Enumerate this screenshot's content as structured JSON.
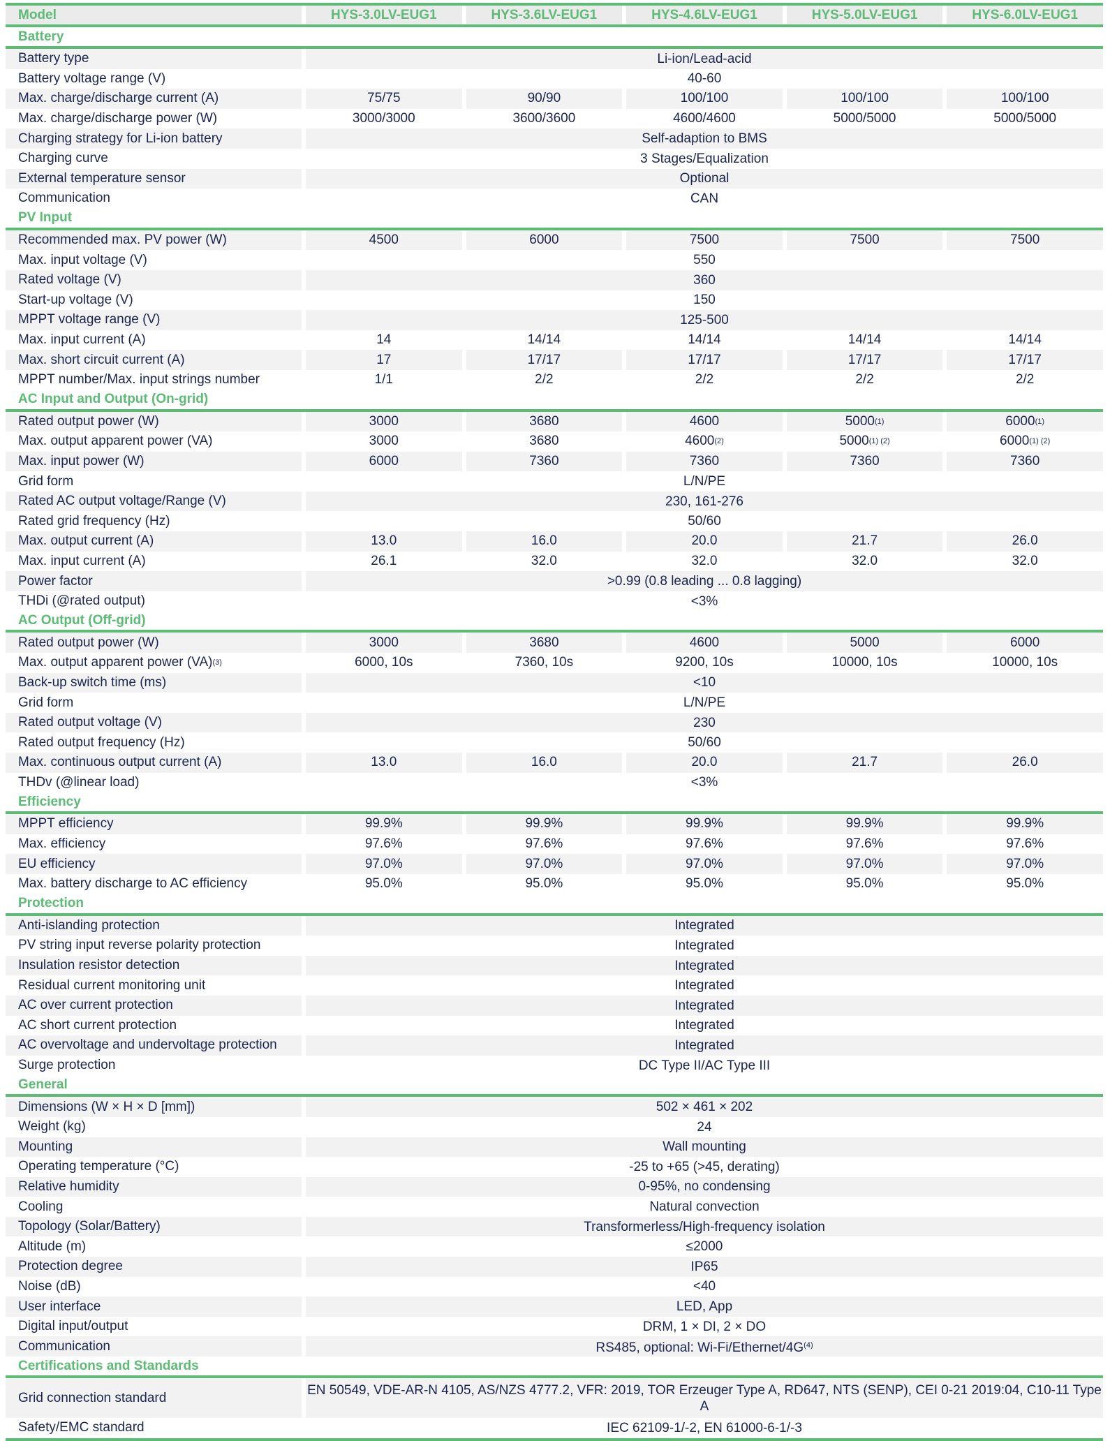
{
  "header": {
    "label": "Model",
    "models": [
      "HYS-3.0LV-EUG1",
      "HYS-3.6LV-EUG1",
      "HYS-4.6LV-EUG1",
      "HYS-5.0LV-EUG1",
      "HYS-6.0LV-EUG1"
    ]
  },
  "colors": {
    "accent": "#5cbb74",
    "text": "#1b2550",
    "stripe": "#f2f2f2"
  },
  "sections": [
    {
      "title": "Battery",
      "rows": [
        {
          "label": "Battery type",
          "all": "Li-ion/Lead-acid"
        },
        {
          "label": "Battery voltage range (V)",
          "all": "40-60"
        },
        {
          "label": "Max. charge/discharge current (A)",
          "values": [
            "75/75",
            "90/90",
            "100/100",
            "100/100",
            "100/100"
          ]
        },
        {
          "label": "Max. charge/discharge power (W)",
          "values": [
            "3000/3000",
            "3600/3600",
            "4600/4600",
            "5000/5000",
            "5000/5000"
          ]
        },
        {
          "label": "Charging strategy for Li-ion battery",
          "all": "Self-adaption to BMS"
        },
        {
          "label": "Charging curve",
          "all": "3 Stages/Equalization"
        },
        {
          "label": "External temperature sensor",
          "all": "Optional"
        },
        {
          "label": "Communication",
          "all": "CAN"
        }
      ]
    },
    {
      "title": "PV Input",
      "rows": [
        {
          "label": "Recommended max. PV power (W)",
          "values": [
            "4500",
            "6000",
            "7500",
            "7500",
            "7500"
          ]
        },
        {
          "label": "Max. input voltage (V)",
          "all": "550"
        },
        {
          "label": "Rated voltage (V)",
          "all": "360"
        },
        {
          "label": "Start-up voltage (V)",
          "all": "150"
        },
        {
          "label": "MPPT voltage range (V)",
          "all": "125-500"
        },
        {
          "label": "Max. input current (A)",
          "values": [
            "14",
            "14/14",
            "14/14",
            "14/14",
            "14/14"
          ]
        },
        {
          "label": "Max. short circuit current (A)",
          "values": [
            "17",
            "17/17",
            "17/17",
            "17/17",
            "17/17"
          ]
        },
        {
          "label": "MPPT number/Max. input strings number",
          "values": [
            "1/1",
            "2/2",
            "2/2",
            "2/2",
            "2/2"
          ]
        }
      ]
    },
    {
      "title": "AC Input and Output (On-grid)",
      "rows": [
        {
          "label": "Rated output power (W)",
          "values": [
            "3000",
            "3680",
            "4600",
            "5000",
            "6000"
          ],
          "sups": [
            "",
            "",
            "",
            "(1)",
            "(1)"
          ]
        },
        {
          "label": "Max. output apparent power (VA)",
          "values": [
            "3000",
            "3680",
            "4600",
            "5000",
            "6000"
          ],
          "sups": [
            "",
            "",
            "(2)",
            "(1) (2)",
            "(1) (2)"
          ]
        },
        {
          "label": "Max. input power (W)",
          "values": [
            "6000",
            "7360",
            "7360",
            "7360",
            "7360"
          ]
        },
        {
          "label": "Grid form",
          "all": "L/N/PE"
        },
        {
          "label": "Rated AC output voltage/Range (V)",
          "all": "230, 161-276"
        },
        {
          "label": "Rated grid frequency (Hz)",
          "all": "50/60"
        },
        {
          "label": "Max. output current (A)",
          "values": [
            "13.0",
            "16.0",
            "20.0",
            "21.7",
            "26.0"
          ]
        },
        {
          "label": "Max. input current (A)",
          "values": [
            "26.1",
            "32.0",
            "32.0",
            "32.0",
            "32.0"
          ]
        },
        {
          "label": "Power factor",
          "all": ">0.99 (0.8 leading ... 0.8 lagging)"
        },
        {
          "label": "THDi (@rated output)",
          "all": "<3%"
        }
      ]
    },
    {
      "title": "AC Output (Off-grid)",
      "rows": [
        {
          "label": "Rated output power (W)",
          "values": [
            "3000",
            "3680",
            "4600",
            "5000",
            "6000"
          ]
        },
        {
          "label": "Max. output apparent power (VA)",
          "label_sup": "(3)",
          "values": [
            "6000, 10s",
            "7360, 10s",
            "9200, 10s",
            "10000, 10s",
            "10000, 10s"
          ]
        },
        {
          "label": "Back-up switch time (ms)",
          "all": "<10"
        },
        {
          "label": "Grid form",
          "all": "L/N/PE"
        },
        {
          "label": "Rated output voltage (V)",
          "all": "230"
        },
        {
          "label": "Rated output frequency (Hz)",
          "all": "50/60"
        },
        {
          "label": "Max. continuous output current (A)",
          "values": [
            "13.0",
            "16.0",
            "20.0",
            "21.7",
            "26.0"
          ]
        },
        {
          "label": "THDv (@linear load)",
          "all": "<3%"
        }
      ]
    },
    {
      "title": "Efficiency",
      "rows": [
        {
          "label": "MPPT efficiency",
          "values": [
            "99.9%",
            "99.9%",
            "99.9%",
            "99.9%",
            "99.9%"
          ]
        },
        {
          "label": "Max. efficiency",
          "values": [
            "97.6%",
            "97.6%",
            "97.6%",
            "97.6%",
            "97.6%"
          ]
        },
        {
          "label": "EU efficiency",
          "values": [
            "97.0%",
            "97.0%",
            "97.0%",
            "97.0%",
            "97.0%"
          ]
        },
        {
          "label": "Max. battery discharge to AC efficiency",
          "values": [
            "95.0%",
            "95.0%",
            "95.0%",
            "95.0%",
            "95.0%"
          ]
        }
      ]
    },
    {
      "title": "Protection",
      "rows": [
        {
          "label": "Anti-islanding protection",
          "all": "Integrated"
        },
        {
          "label": "PV string input reverse polarity protection",
          "all": "Integrated"
        },
        {
          "label": "Insulation resistor detection",
          "all": "Integrated"
        },
        {
          "label": "Residual current monitoring unit",
          "all": "Integrated"
        },
        {
          "label": "AC over current protection",
          "all": "Integrated"
        },
        {
          "label": "AC short current protection",
          "all": "Integrated"
        },
        {
          "label": "AC overvoltage and undervoltage protection",
          "all": "Integrated"
        },
        {
          "label": "Surge protection",
          "all": "DC Type II/AC Type III"
        }
      ]
    },
    {
      "title": "General",
      "rows": [
        {
          "label": "Dimensions (W × H × D [mm])",
          "all": "502 × 461 × 202"
        },
        {
          "label": "Weight (kg)",
          "all": "24"
        },
        {
          "label": "Mounting",
          "all": "Wall mounting"
        },
        {
          "label": "Operating temperature (°C)",
          "all": "-25 to +65 (>45, derating)"
        },
        {
          "label": "Relative humidity",
          "all": "0-95%, no condensing"
        },
        {
          "label": "Cooling",
          "all": "Natural convection"
        },
        {
          "label": "Topology (Solar/Battery)",
          "all": "Transformerless/High-frequency isolation"
        },
        {
          "label": "Altitude (m)",
          "all": "≤2000"
        },
        {
          "label": "Protection degree",
          "all": "IP65"
        },
        {
          "label": "Noise (dB)",
          "all": "<40"
        },
        {
          "label": "User interface",
          "all": "LED, App"
        },
        {
          "label": "Digital input/output",
          "all": "DRM, 1 × DI, 2 × DO"
        },
        {
          "label": "Communication",
          "all": "RS485, optional: Wi-Fi/Ethernet/4G",
          "all_sup": "(4)"
        }
      ]
    },
    {
      "title": "Certifications and Standards",
      "rows": [
        {
          "label": "Grid connection standard",
          "all": "EN 50549, VDE-AR-N 4105, AS/NZS 4777.2, VFR: 2019, TOR Erzeuger Type A, RD647, NTS (SENP), CEI 0-21 2019:04, C10-11 Type A",
          "tall": true
        },
        {
          "label": "Safety/EMC standard",
          "all": "IEC 62109-1/-2, EN 61000-6-1/-3"
        }
      ]
    }
  ]
}
